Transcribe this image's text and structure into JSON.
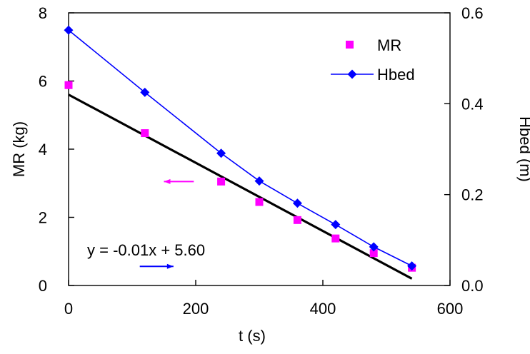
{
  "chart_data": {
    "type": "scatter",
    "x_axis": {
      "label": "t (s)",
      "range": [
        0,
        600
      ],
      "ticks": [
        0,
        200,
        400,
        600
      ]
    },
    "y_axis_left": {
      "label": "MR (kg)",
      "range": [
        0,
        8
      ],
      "ticks": [
        0,
        2,
        4,
        6,
        8
      ]
    },
    "y_axis_right": {
      "label": "Hbed (m)",
      "range": [
        0,
        0.6
      ],
      "ticks": [
        "0.0",
        "0.2",
        "0.4",
        "0.6"
      ]
    },
    "grid": false,
    "legend": {
      "placement": "top-right",
      "entries": [
        "MR",
        "Hbed"
      ]
    },
    "series": [
      {
        "name": "MR",
        "axis": "left",
        "marker": "square",
        "color": "#ff00ff",
        "x": [
          0,
          120,
          240,
          300,
          360,
          420,
          480,
          540
        ],
        "y": [
          5.88,
          4.47,
          3.05,
          2.45,
          1.92,
          1.38,
          0.95,
          0.52
        ]
      },
      {
        "name": "Hbed",
        "axis": "right",
        "marker": "diamond",
        "line": true,
        "color": "#0000ff",
        "x": [
          0,
          120,
          240,
          300,
          360,
          420,
          480,
          540
        ],
        "y": [
          0.562,
          0.425,
          0.291,
          0.23,
          0.181,
          0.134,
          0.085,
          0.043
        ]
      }
    ],
    "trendline": {
      "series": "MR",
      "equation": "y = -0.01x + 5.60",
      "x": [
        0,
        540
      ],
      "y": [
        5.6,
        0.2
      ],
      "color": "#000000"
    },
    "annotations": [
      {
        "type": "arrow",
        "direction": "right",
        "color": "#0000ff",
        "points_to": "right axis",
        "x_from": 112,
        "x_to": 165,
        "y": 0.56
      },
      {
        "type": "arrow",
        "direction": "left",
        "color": "#ff00ff",
        "points_to": "left axis",
        "x_from": 197,
        "x_to": 150,
        "y": 3.05
      }
    ]
  }
}
